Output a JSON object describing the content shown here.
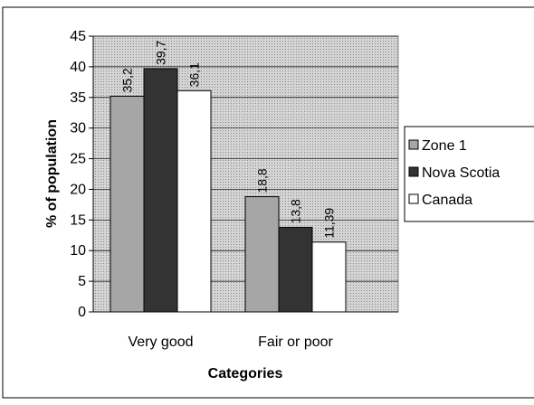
{
  "chart_data": {
    "type": "bar",
    "categories": [
      "Very good",
      "Fair or poor"
    ],
    "series": [
      {
        "name": "Zone 1",
        "color": "#a6a6a6",
        "values": [
          35.2,
          18.8
        ],
        "value_labels": [
          "35,2",
          "18,8"
        ]
      },
      {
        "name": "Nova Scotia",
        "color": "#333333",
        "values": [
          39.7,
          13.8
        ],
        "value_labels": [
          "39,7",
          "13,8"
        ]
      },
      {
        "name": "Canada",
        "color": "#ffffff",
        "values": [
          36.1,
          11.39
        ],
        "value_labels": [
          "36,1",
          "11,39"
        ]
      }
    ],
    "y_label": "% of population",
    "x_label": "Categories",
    "ylim": [
      0,
      45
    ],
    "yticks": [
      0,
      5,
      10,
      15,
      20,
      25,
      30,
      35,
      40,
      45
    ],
    "grid": true,
    "legend": "right"
  }
}
